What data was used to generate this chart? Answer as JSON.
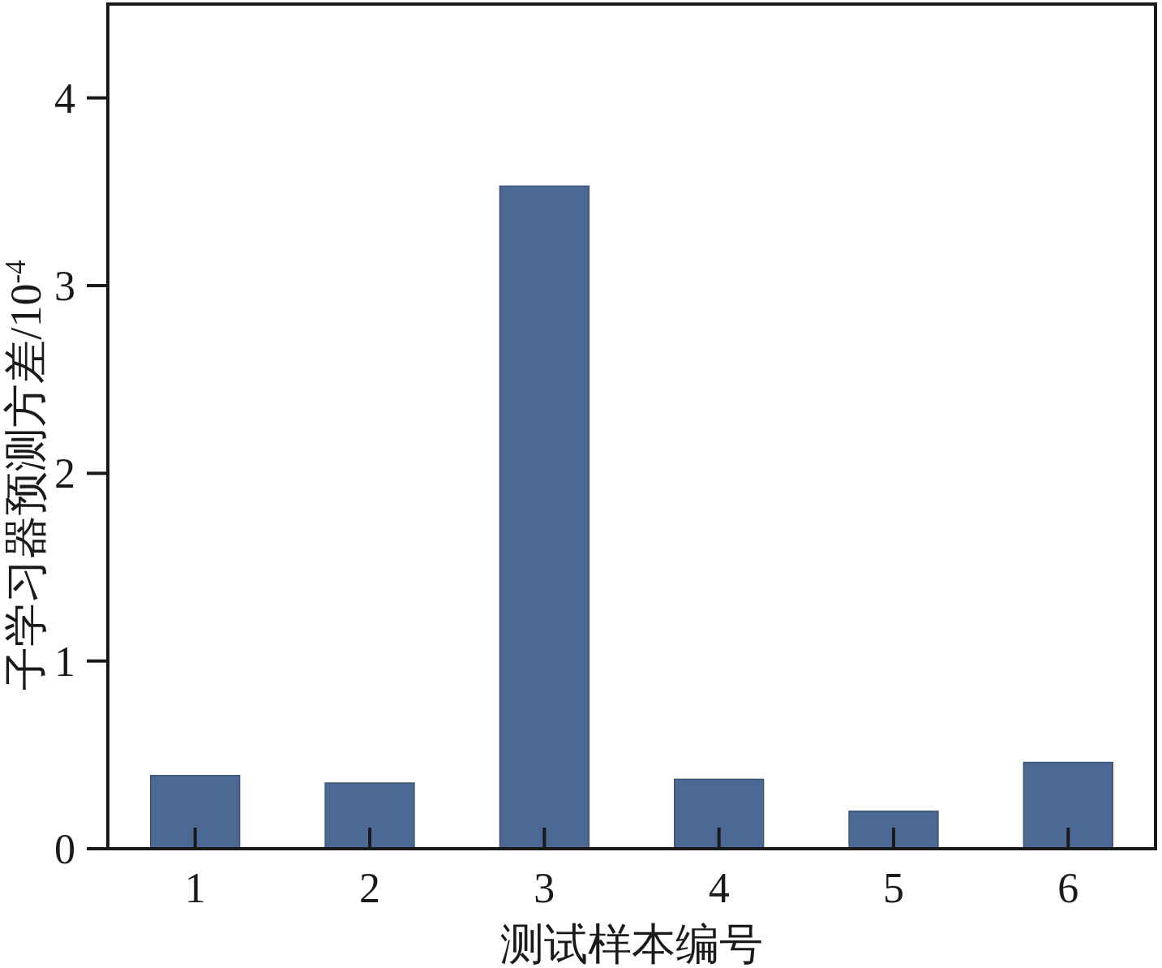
{
  "chart_data": {
    "type": "bar",
    "xlabel": "测试样本编号",
    "ylabel": "子学习器预测方差/10$^{-4}$",
    "categories": [
      "1",
      "2",
      "3",
      "4",
      "5",
      "6"
    ],
    "values": [
      0.39,
      0.35,
      3.53,
      0.37,
      0.2,
      0.46
    ],
    "color": "#4c6894",
    "ylim": [
      0,
      4.5
    ],
    "yticks": [
      0,
      1,
      2,
      3,
      4
    ],
    "grid": false
  }
}
